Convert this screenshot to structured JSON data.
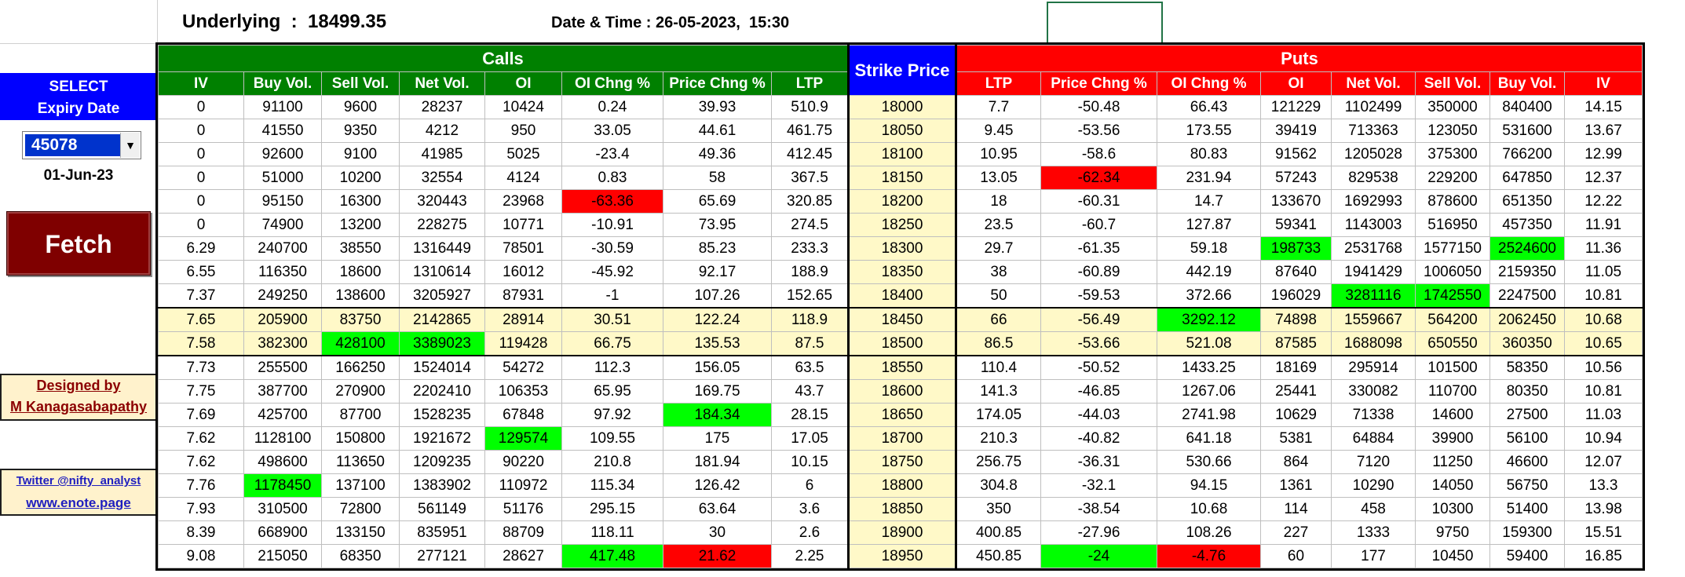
{
  "header": {
    "underlying_label": "Underlying  :  18499.35",
    "datetime_label": "Date & Time : 26-05-2023,  15:30"
  },
  "left_panel": {
    "select_line1": "SELECT",
    "select_line2": "Expiry Date",
    "expiry_value": "45078",
    "expiry_date": "01-Jun-23",
    "fetch_label": "Fetch",
    "designed_by": "Designed by",
    "author": "M Kanagasabapathy",
    "twitter": "Twitter @nifty_analyst",
    "website": "www.enote.page"
  },
  "table": {
    "calls_title": "Calls",
    "puts_title": "Puts",
    "strike_title": "Strike Price",
    "call_columns": [
      "IV",
      "Buy Vol.",
      "Sell Vol.",
      "Net Vol.",
      "OI",
      "OI Chng %",
      "Price Chng %",
      "LTP"
    ],
    "put_columns": [
      "LTP",
      "Price Chng %",
      "OI Chng %",
      "OI",
      "Net Vol.",
      "Sell Vol.",
      "Buy Vol.",
      "IV"
    ],
    "rows": [
      {
        "call": [
          "0",
          "91100",
          "9600",
          "28237",
          "10424",
          "0.24",
          "39.93",
          "510.9"
        ],
        "strike": "18000",
        "put": [
          "7.7",
          "-50.48",
          "66.43",
          "121229",
          "1102499",
          "350000",
          "840400",
          "14.15"
        ]
      },
      {
        "call": [
          "0",
          "41550",
          "9350",
          "4212",
          "950",
          "33.05",
          "44.61",
          "461.75"
        ],
        "strike": "18050",
        "put": [
          "9.45",
          "-53.56",
          "173.55",
          "39419",
          "713363",
          "123050",
          "531600",
          "13.67"
        ]
      },
      {
        "call": [
          "0",
          "92600",
          "9100",
          "41985",
          "5025",
          "-23.4",
          "49.36",
          "412.45"
        ],
        "strike": "18100",
        "put": [
          "10.95",
          "-58.6",
          "80.83",
          "91562",
          "1205028",
          "375300",
          "766200",
          "12.99"
        ]
      },
      {
        "call": [
          "0",
          "51000",
          "10200",
          "32554",
          "4124",
          "0.83",
          "58",
          "367.5"
        ],
        "strike": "18150",
        "put": [
          "13.05",
          "-62.34",
          "231.94",
          "57243",
          "829538",
          "229200",
          "647850",
          "12.37"
        ]
      },
      {
        "call": [
          "0",
          "95150",
          "16300",
          "320443",
          "23968",
          "-63.36",
          "65.69",
          "320.85"
        ],
        "strike": "18200",
        "put": [
          "18",
          "-60.31",
          "14.7",
          "133670",
          "1692993",
          "878600",
          "651350",
          "12.22"
        ]
      },
      {
        "call": [
          "0",
          "74900",
          "13200",
          "228275",
          "10771",
          "-10.91",
          "73.95",
          "274.5"
        ],
        "strike": "18250",
        "put": [
          "23.5",
          "-60.7",
          "127.87",
          "59341",
          "1143003",
          "516950",
          "457350",
          "11.91"
        ]
      },
      {
        "call": [
          "6.29",
          "240700",
          "38550",
          "1316449",
          "78501",
          "-30.59",
          "85.23",
          "233.3"
        ],
        "strike": "18300",
        "put": [
          "29.7",
          "-61.35",
          "59.18",
          "198733",
          "2531768",
          "1577150",
          "2524600",
          "11.36"
        ]
      },
      {
        "call": [
          "6.55",
          "116350",
          "18600",
          "1310614",
          "16012",
          "-45.92",
          "92.17",
          "188.9"
        ],
        "strike": "18350",
        "put": [
          "38",
          "-60.89",
          "442.19",
          "87640",
          "1941429",
          "1006050",
          "2159350",
          "11.05"
        ]
      },
      {
        "call": [
          "7.37",
          "249250",
          "138600",
          "3205927",
          "87931",
          "-1",
          "107.26",
          "152.65"
        ],
        "strike": "18400",
        "put": [
          "50",
          "-59.53",
          "372.66",
          "196029",
          "3281116",
          "1742550",
          "2247500",
          "10.81"
        ]
      },
      {
        "call": [
          "7.65",
          "205900",
          "83750",
          "2142865",
          "28914",
          "30.51",
          "122.24",
          "118.9"
        ],
        "strike": "18450",
        "put": [
          "66",
          "-56.49",
          "3292.12",
          "74898",
          "1559667",
          "564200",
          "2062450",
          "10.68"
        ]
      },
      {
        "call": [
          "7.58",
          "382300",
          "428100",
          "3389023",
          "119428",
          "66.75",
          "135.53",
          "87.5"
        ],
        "strike": "18500",
        "put": [
          "86.5",
          "-53.66",
          "521.08",
          "87585",
          "1688098",
          "650550",
          "360350",
          "10.65"
        ]
      },
      {
        "call": [
          "7.73",
          "255500",
          "166250",
          "1524014",
          "54272",
          "112.3",
          "156.05",
          "63.5"
        ],
        "strike": "18550",
        "put": [
          "110.4",
          "-50.52",
          "1433.25",
          "18169",
          "295914",
          "101500",
          "58350",
          "10.56"
        ]
      },
      {
        "call": [
          "7.75",
          "387700",
          "270900",
          "2202410",
          "106353",
          "65.95",
          "169.75",
          "43.7"
        ],
        "strike": "18600",
        "put": [
          "141.3",
          "-46.85",
          "1267.06",
          "25441",
          "330082",
          "110700",
          "80350",
          "10.81"
        ]
      },
      {
        "call": [
          "7.69",
          "425700",
          "87700",
          "1528235",
          "67848",
          "97.92",
          "184.34",
          "28.15"
        ],
        "strike": "18650",
        "put": [
          "174.05",
          "-44.03",
          "2741.98",
          "10629",
          "71338",
          "14600",
          "27500",
          "11.03"
        ]
      },
      {
        "call": [
          "7.62",
          "1128100",
          "150800",
          "1921672",
          "129574",
          "109.55",
          "175",
          "17.05"
        ],
        "strike": "18700",
        "put": [
          "210.3",
          "-40.82",
          "641.18",
          "5381",
          "64884",
          "39900",
          "56100",
          "10.94"
        ]
      },
      {
        "call": [
          "7.62",
          "498600",
          "113650",
          "1209235",
          "90220",
          "210.8",
          "181.94",
          "10.15"
        ],
        "strike": "18750",
        "put": [
          "256.75",
          "-36.31",
          "530.66",
          "864",
          "7120",
          "11250",
          "46600",
          "12.07"
        ]
      },
      {
        "call": [
          "7.76",
          "1178450",
          "137100",
          "1383902",
          "110972",
          "115.34",
          "126.42",
          "6"
        ],
        "strike": "18800",
        "put": [
          "304.8",
          "-32.1",
          "94.15",
          "1361",
          "10290",
          "14050",
          "56750",
          "13.3"
        ]
      },
      {
        "call": [
          "7.93",
          "310500",
          "72800",
          "561149",
          "51176",
          "295.15",
          "63.64",
          "3.6"
        ],
        "strike": "18850",
        "put": [
          "350",
          "-38.54",
          "10.68",
          "114",
          "458",
          "10300",
          "51400",
          "13.98"
        ]
      },
      {
        "call": [
          "8.39",
          "668900",
          "133150",
          "835951",
          "88709",
          "118.11",
          "30",
          "2.6"
        ],
        "strike": "18900",
        "put": [
          "400.85",
          "-27.96",
          "108.26",
          "227",
          "1333",
          "9750",
          "159300",
          "15.51"
        ]
      },
      {
        "call": [
          "9.08",
          "215050",
          "68350",
          "277121",
          "28627",
          "417.48",
          "21.62",
          "2.25"
        ],
        "strike": "18950",
        "put": [
          "450.85",
          "-24",
          "-4.76",
          "60",
          "177",
          "10450",
          "59400",
          "16.85"
        ]
      }
    ]
  },
  "colors": {
    "calls": "#008000",
    "puts": "#ff0000",
    "strike_header": "#0000ff",
    "highlight_max": "#00ff00",
    "highlight_min": "#ff0000",
    "atm_row": "#fff9c8",
    "fetch_button": "#7f0000"
  }
}
